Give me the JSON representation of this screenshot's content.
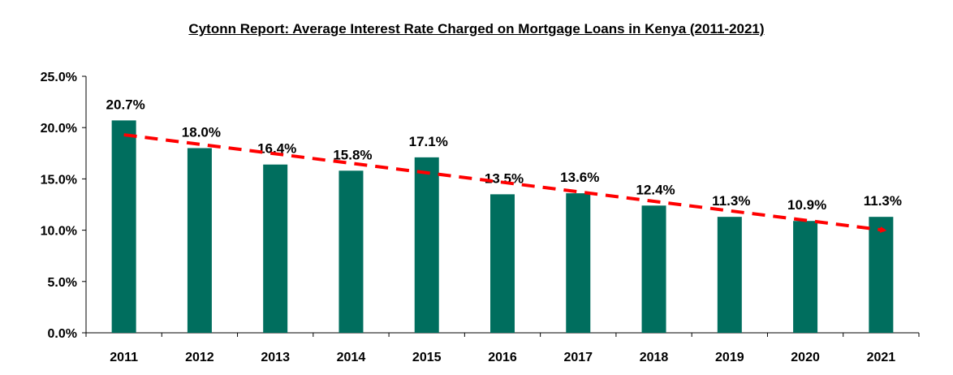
{
  "chart_data": {
    "type": "bar",
    "title": "Cytonn Report: Average Interest Rate Charged on Mortgage Loans in Kenya (2011-2021)",
    "categories": [
      "2011",
      "2012",
      "2013",
      "2014",
      "2015",
      "2016",
      "2017",
      "2018",
      "2019",
      "2020",
      "2021"
    ],
    "values": [
      20.7,
      18.0,
      16.4,
      15.8,
      17.1,
      13.5,
      13.6,
      12.4,
      11.3,
      10.9,
      11.3
    ],
    "data_labels": [
      "20.7%",
      "18.0%",
      "16.4%",
      "15.8%",
      "17.1%",
      "13.5%",
      "13.6%",
      "12.4%",
      "11.3%",
      "10.9%",
      "11.3%"
    ],
    "y_ticks": [
      0,
      5,
      10,
      15,
      20,
      25
    ],
    "y_tick_labels": [
      "0.0%",
      "5.0%",
      "10.0%",
      "15.0%",
      "20.0%",
      "25.0%"
    ],
    "ylim": [
      0,
      25
    ],
    "xlabel": "",
    "ylabel": "",
    "grid": false,
    "legend": "none",
    "bar_color": "#006e5e",
    "trendline": {
      "type": "linear",
      "style": "dashed",
      "color": "#ff0000",
      "start_value": 19.3,
      "end_value": 10.0,
      "arrow_end": true
    }
  }
}
